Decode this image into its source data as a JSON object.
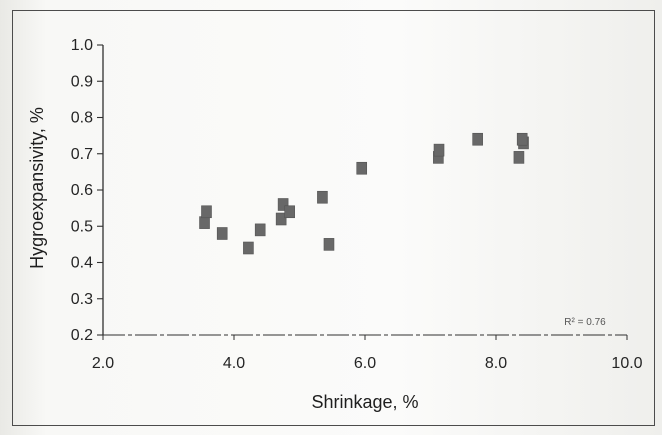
{
  "chart_data": {
    "type": "scatter",
    "xlabel": "Shrinkage, %",
    "ylabel": "Hygroexpansivity, %",
    "xlim": [
      2.0,
      10.0
    ],
    "ylim": [
      0.2,
      1.0
    ],
    "xticks": [
      "2.0",
      "4.0",
      "6.0",
      "8.0",
      "10.0"
    ],
    "yticks": [
      "0.2",
      "0.3",
      "0.4",
      "0.5",
      "0.6",
      "0.7",
      "0.8",
      "0.9",
      "1.0"
    ],
    "points": [
      {
        "x": 3.55,
        "y": 0.51
      },
      {
        "x": 3.58,
        "y": 0.54
      },
      {
        "x": 3.82,
        "y": 0.48
      },
      {
        "x": 4.22,
        "y": 0.44
      },
      {
        "x": 4.4,
        "y": 0.49
      },
      {
        "x": 4.72,
        "y": 0.52
      },
      {
        "x": 4.75,
        "y": 0.56
      },
      {
        "x": 4.85,
        "y": 0.54
      },
      {
        "x": 5.35,
        "y": 0.58
      },
      {
        "x": 5.45,
        "y": 0.45
      },
      {
        "x": 5.95,
        "y": 0.66
      },
      {
        "x": 7.12,
        "y": 0.69
      },
      {
        "x": 7.13,
        "y": 0.71
      },
      {
        "x": 7.72,
        "y": 0.74
      },
      {
        "x": 8.35,
        "y": 0.69
      },
      {
        "x": 8.42,
        "y": 0.73
      },
      {
        "x": 8.4,
        "y": 0.74
      }
    ],
    "annotation": "R² = 0.76",
    "point_color": "#686868",
    "axis_color": "#303030",
    "grid": false,
    "legend": false
  }
}
